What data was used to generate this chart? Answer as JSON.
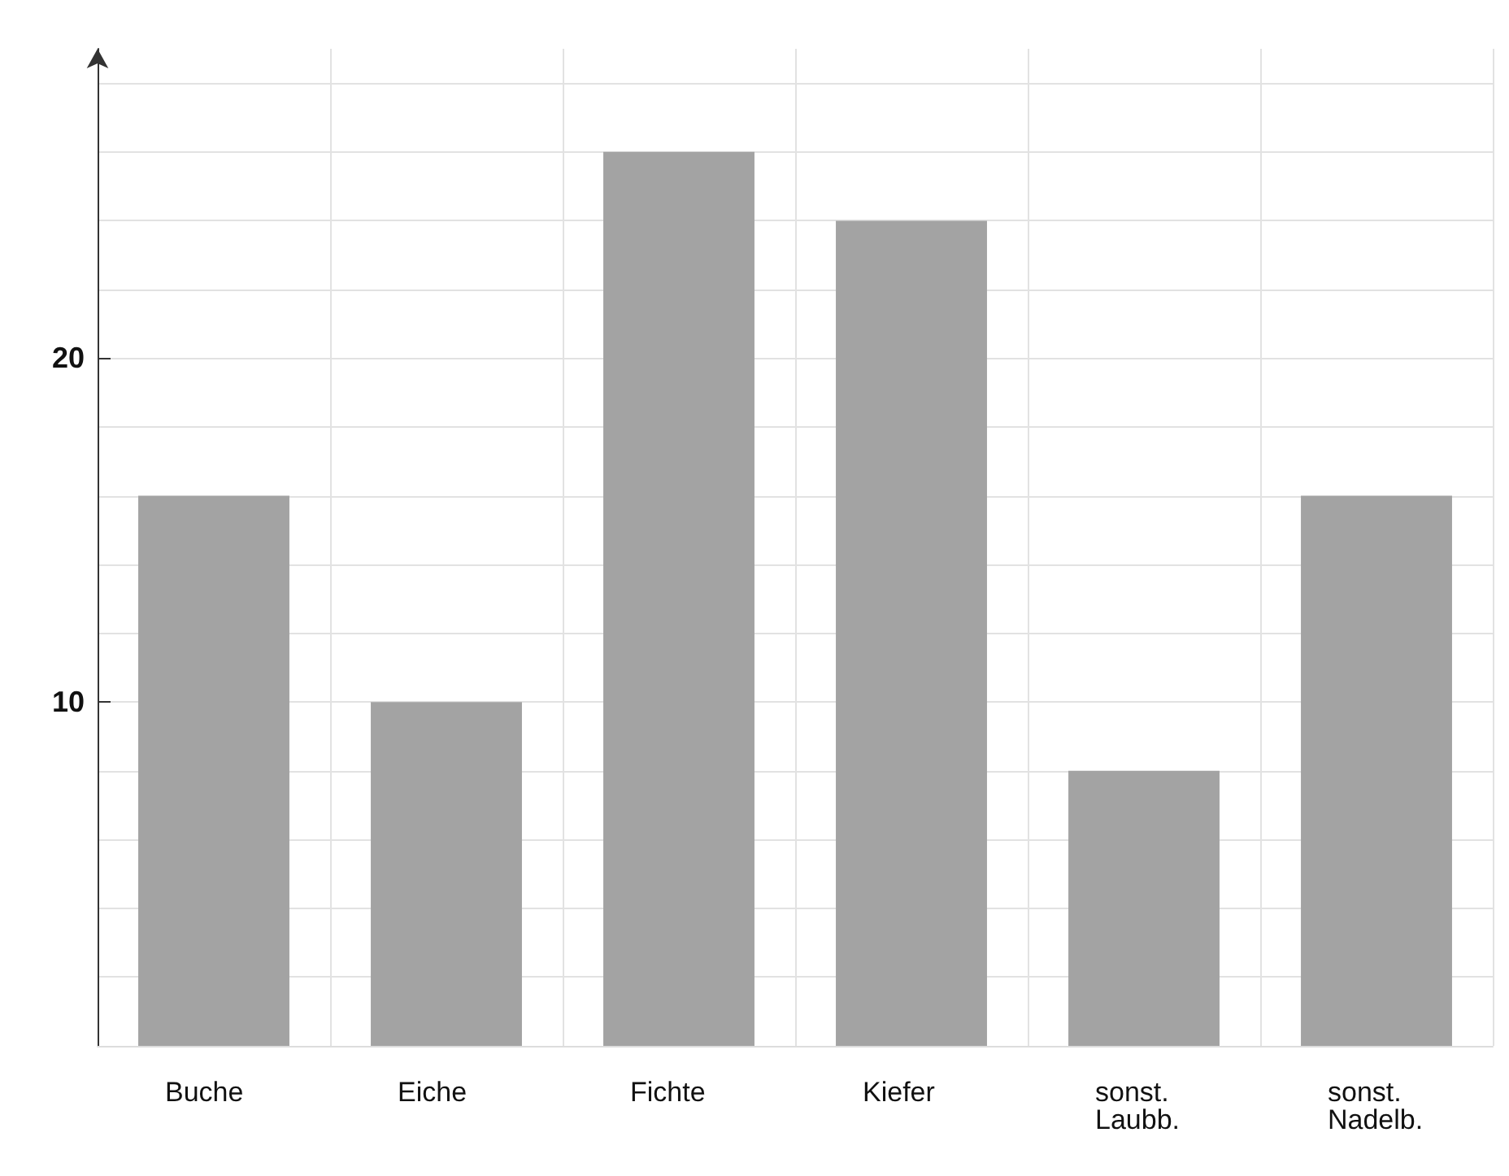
{
  "chart_data": {
    "type": "bar",
    "categories": [
      "Buche",
      "Eiche",
      "Fichte",
      "Kiefer",
      "sonst.\nLaubb.",
      "sonst.\nNadelb."
    ],
    "values": [
      16,
      10,
      26,
      24,
      8,
      16
    ],
    "color": "#a3a3a3",
    "ylim": [
      0,
      29
    ],
    "yticks": [
      {
        "value": 2,
        "label": null
      },
      {
        "value": 4,
        "label": null
      },
      {
        "value": 6,
        "label": null
      },
      {
        "value": 8,
        "label": null
      },
      10,
      {
        "value": 12,
        "label": null
      },
      {
        "value": 14,
        "label": null
      },
      {
        "value": 16,
        "label": null
      },
      {
        "value": 18,
        "label": null
      },
      20,
      {
        "value": 22,
        "label": null
      },
      {
        "value": 24,
        "label": null
      },
      {
        "value": 26,
        "label": null
      },
      {
        "value": 28,
        "label": null
      }
    ],
    "grid": true
  }
}
